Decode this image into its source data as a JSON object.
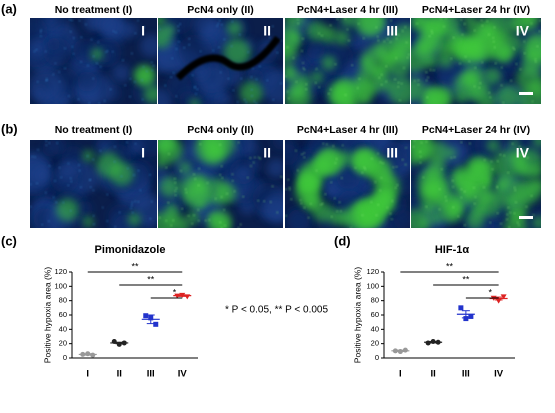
{
  "rows": [
    {
      "label": "(a)",
      "titles": [
        "No treatment (I)",
        "PcN4 only (II)",
        "PcN4+Laser 4 hr (III)",
        "PcN4+Laser 24 hr (IV)"
      ],
      "numerals": [
        "I",
        "II",
        "III",
        "IV"
      ]
    },
    {
      "label": "(b)",
      "titles": [
        "No treatment (I)",
        "PcN4 only (II)",
        "PcN4+Laser 4 hr (III)",
        "PcN4+Laser 24 hr (IV)"
      ],
      "numerals": [
        "I",
        "II",
        "III",
        "IV"
      ]
    }
  ],
  "note": "* P < 0.05, ** P < 0.005",
  "chart_data": [
    {
      "type": "dotplot",
      "panel": "(c)",
      "title": "Pimonidazole",
      "y_label": "Positive hypoxia area (%)",
      "categories": [
        "I",
        "II",
        "III",
        "IV"
      ],
      "colors": [
        "#999999",
        "#222222",
        "#2233cc",
        "#dd2222"
      ],
      "points": [
        [
          5,
          6,
          4
        ],
        [
          23,
          19,
          21
        ],
        [
          59,
          56,
          47
        ],
        [
          87,
          88,
          86
        ]
      ],
      "means": [
        5,
        21,
        54,
        87
      ],
      "errors": [
        1,
        1,
        6,
        1
      ],
      "ylim": [
        0,
        120
      ],
      "yticks": [
        0,
        20,
        40,
        60,
        80,
        100,
        120
      ],
      "comparisons": [
        {
          "from": "I",
          "to": "IV",
          "label": "**"
        },
        {
          "from": "II",
          "to": "IV",
          "label": "**"
        },
        {
          "from": "III",
          "to": "IV",
          "label": "*"
        }
      ]
    },
    {
      "type": "dotplot",
      "panel": "(d)",
      "title": "HIF-1α",
      "y_label": "Positive hypoxia area (%)",
      "categories": [
        "I",
        "II",
        "III",
        "IV"
      ],
      "colors": [
        "#999999",
        "#222222",
        "#2233cc",
        "#dd2222"
      ],
      "points": [
        [
          10,
          9,
          11
        ],
        [
          21,
          23,
          22
        ],
        [
          70,
          55,
          58
        ],
        [
          84,
          80,
          86
        ]
      ],
      "means": [
        10,
        22,
        61,
        83
      ],
      "errors": [
        1,
        1,
        5,
        2
      ],
      "ylim": [
        0,
        120
      ],
      "yticks": [
        0,
        20,
        40,
        60,
        80,
        100,
        120
      ],
      "comparisons": [
        {
          "from": "I",
          "to": "IV",
          "label": "**"
        },
        {
          "from": "II",
          "to": "IV",
          "label": "**"
        },
        {
          "from": "III",
          "to": "IV",
          "label": "*"
        }
      ]
    }
  ]
}
